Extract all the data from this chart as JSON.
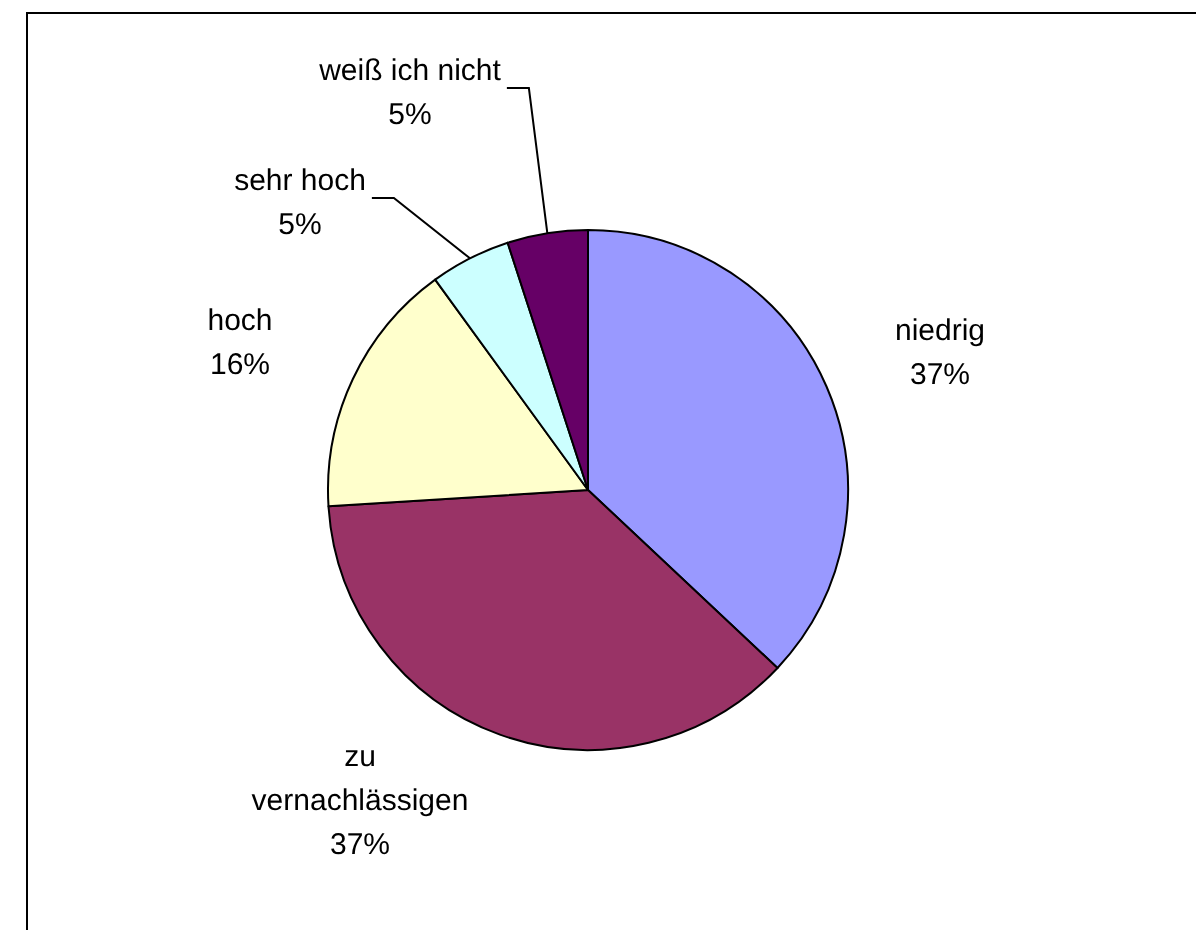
{
  "chart_data": {
    "type": "pie",
    "categories": [
      "niedrig",
      "zu vernachlässigen",
      "hoch",
      "sehr hoch",
      "weiß ich nicht"
    ],
    "values": [
      37,
      37,
      16,
      5,
      5
    ],
    "colors": [
      "#9999ff",
      "#993366",
      "#ffffcc",
      "#ccffff",
      "#660066"
    ],
    "value_labels": [
      "37%",
      "37%",
      "16%",
      "5%",
      "5%"
    ]
  }
}
